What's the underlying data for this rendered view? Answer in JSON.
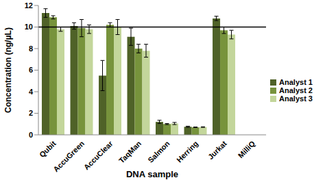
{
  "chart_data": {
    "type": "bar",
    "x_label": "DNA sample",
    "y_label": "Concentration (ng/µL)",
    "categories": [
      "Qubit",
      "AccuGreen",
      "AccuClear",
      "TaqMan",
      "Salmon",
      "Herring",
      "Jurkat",
      "MilliQ"
    ],
    "series": [
      {
        "name": "Analyst 1",
        "color": "#4f6228",
        "values": [
          11.3,
          10.1,
          5.5,
          9.1,
          1.2,
          0.75,
          10.8,
          0
        ],
        "errors": [
          0.4,
          0.3,
          1.4,
          0.8,
          0.15,
          0.05,
          0.2,
          0
        ]
      },
      {
        "name": "Analyst 2",
        "color": "#77933c",
        "values": [
          10.9,
          9.9,
          10.2,
          8.0,
          1.0,
          0.7,
          9.7,
          0
        ],
        "errors": [
          0.15,
          0.8,
          0.2,
          0.4,
          0.05,
          0.03,
          0.3,
          0
        ]
      },
      {
        "name": "Analyst 3",
        "color": "#c3d69b",
        "values": [
          9.8,
          9.8,
          10.0,
          7.8,
          1.05,
          0.72,
          9.3,
          0
        ],
        "errors": [
          0.2,
          0.4,
          0.7,
          0.6,
          0.1,
          0.03,
          0.4,
          0
        ]
      }
    ],
    "hline": 10,
    "ylim": [
      0,
      12
    ],
    "yticks": [
      0,
      2,
      4,
      6,
      8,
      10,
      12
    ],
    "grid": false,
    "legend": "right"
  }
}
